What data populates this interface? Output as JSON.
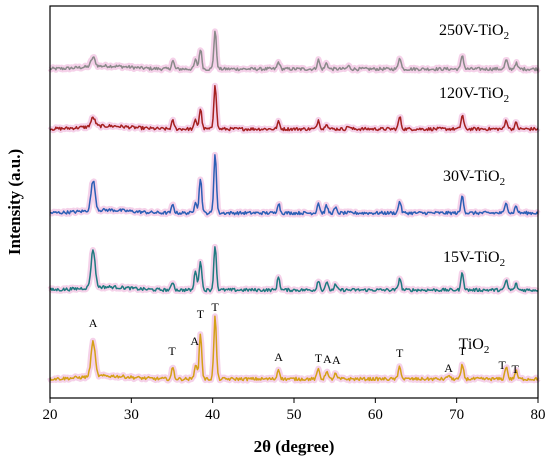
{
  "chart_data": {
    "type": "line",
    "xlabel": "2θ (degree)",
    "ylabel": "Intensity (a.u.)",
    "xlim": [
      20,
      80
    ],
    "xticks": [
      20,
      30,
      40,
      50,
      60,
      70,
      80
    ],
    "y_ticks_shown": false,
    "grid": false,
    "legend": "none (series labels printed above each trace)",
    "series": [
      {
        "name": "250V-TiO",
        "subscript": "2",
        "color": "#8a8a8a",
        "peaks": [
          {
            "x": 25.3,
            "h": 9
          },
          {
            "x": 35.1,
            "h": 8
          },
          {
            "x": 37.9,
            "h": 9
          },
          {
            "x": 38.5,
            "h": 20
          },
          {
            "x": 40.3,
            "h": 38
          },
          {
            "x": 48.1,
            "h": 7
          },
          {
            "x": 53.0,
            "h": 9
          },
          {
            "x": 54.0,
            "h": 6
          },
          {
            "x": 56.7,
            "h": 3
          },
          {
            "x": 63.0,
            "h": 12
          },
          {
            "x": 70.7,
            "h": 14
          },
          {
            "x": 76.1,
            "h": 9
          },
          {
            "x": 77.3,
            "h": 6
          }
        ]
      },
      {
        "name": "120V-TiO",
        "subscript": "2",
        "color": "#a52020",
        "peaks": [
          {
            "x": 25.3,
            "h": 9
          },
          {
            "x": 35.1,
            "h": 8
          },
          {
            "x": 37.9,
            "h": 9
          },
          {
            "x": 38.5,
            "h": 20
          },
          {
            "x": 40.3,
            "h": 45
          },
          {
            "x": 48.1,
            "h": 7
          },
          {
            "x": 53.0,
            "h": 9
          },
          {
            "x": 54.0,
            "h": 6
          },
          {
            "x": 56.7,
            "h": 3
          },
          {
            "x": 63.0,
            "h": 12
          },
          {
            "x": 70.7,
            "h": 14
          },
          {
            "x": 76.1,
            "h": 9
          },
          {
            "x": 77.3,
            "h": 6
          }
        ]
      },
      {
        "name": "30V-TiO",
        "subscript": "2",
        "color": "#2c5fb5",
        "peaks": [
          {
            "x": 25.3,
            "h": 30
          },
          {
            "x": 35.1,
            "h": 8
          },
          {
            "x": 37.9,
            "h": 12
          },
          {
            "x": 38.5,
            "h": 35
          },
          {
            "x": 40.3,
            "h": 60
          },
          {
            "x": 48.1,
            "h": 10
          },
          {
            "x": 53.0,
            "h": 10
          },
          {
            "x": 54.0,
            "h": 7
          },
          {
            "x": 55.1,
            "h": 5
          },
          {
            "x": 63.0,
            "h": 12
          },
          {
            "x": 70.7,
            "h": 18
          },
          {
            "x": 76.1,
            "h": 11
          },
          {
            "x": 77.3,
            "h": 7
          }
        ]
      },
      {
        "name": "15V-TiO",
        "subscript": "2",
        "color": "#1f7a80",
        "peaks": [
          {
            "x": 25.3,
            "h": 38
          },
          {
            "x": 35.1,
            "h": 8
          },
          {
            "x": 37.9,
            "h": 20
          },
          {
            "x": 38.5,
            "h": 30
          },
          {
            "x": 40.3,
            "h": 45
          },
          {
            "x": 48.1,
            "h": 13
          },
          {
            "x": 53.0,
            "h": 10
          },
          {
            "x": 54.0,
            "h": 8
          },
          {
            "x": 55.1,
            "h": 5
          },
          {
            "x": 63.0,
            "h": 12
          },
          {
            "x": 70.7,
            "h": 18
          },
          {
            "x": 76.1,
            "h": 10
          },
          {
            "x": 77.3,
            "h": 6
          }
        ]
      },
      {
        "name": "TiO",
        "subscript": "2",
        "color": "#d4a017",
        "peaks": [
          {
            "x": 25.3,
            "h": 35
          },
          {
            "x": 35.1,
            "h": 11
          },
          {
            "x": 37.9,
            "h": 15
          },
          {
            "x": 38.5,
            "h": 45
          },
          {
            "x": 40.3,
            "h": 62
          },
          {
            "x": 48.1,
            "h": 10
          },
          {
            "x": 53.0,
            "h": 10
          },
          {
            "x": 54.0,
            "h": 8
          },
          {
            "x": 55.1,
            "h": 5
          },
          {
            "x": 63.0,
            "h": 13
          },
          {
            "x": 69.0,
            "h": 4
          },
          {
            "x": 70.7,
            "h": 14
          },
          {
            "x": 76.1,
            "h": 13
          },
          {
            "x": 77.3,
            "h": 8
          }
        ]
      }
    ],
    "annotations": [
      {
        "text": "A",
        "x": 25.3
      },
      {
        "text": "T",
        "x": 35.0
      },
      {
        "text": "A",
        "x": 37.8
      },
      {
        "text": "T",
        "x": 38.5
      },
      {
        "text": "T",
        "x": 40.3
      },
      {
        "text": "A",
        "x": 48.1
      },
      {
        "text": "T",
        "x": 53.0
      },
      {
        "text": "A",
        "x": 54.1
      },
      {
        "text": "A",
        "x": 55.2
      },
      {
        "text": "T",
        "x": 63.0
      },
      {
        "text": "A",
        "x": 69.0
      },
      {
        "text": "T",
        "x": 70.7
      },
      {
        "text": "T",
        "x": 75.6
      },
      {
        "text": "T",
        "x": 77.2
      }
    ]
  }
}
